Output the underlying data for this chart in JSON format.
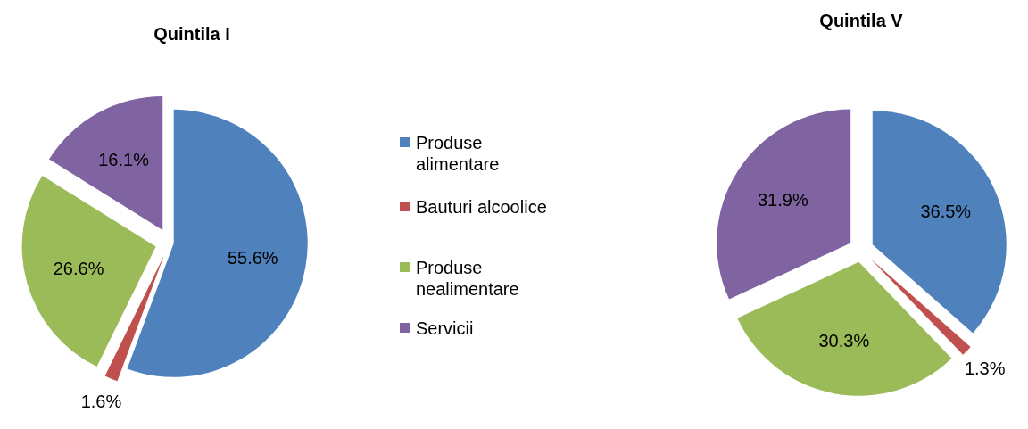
{
  "chart_data": [
    {
      "type": "pie",
      "title": "Quintila I",
      "categories": [
        "Produse alimentare",
        "Bauturi alcoolice",
        "Produse nealimentare",
        "Servicii"
      ],
      "values": [
        55.6,
        1.6,
        26.6,
        16.1
      ],
      "colors": [
        "#4f81bd",
        "#c0504d",
        "#9bbb59",
        "#8064a2"
      ],
      "value_labels": [
        "55.6%",
        "1.6%",
        "26.6%",
        "16.1%"
      ],
      "legend": "right"
    },
    {
      "type": "pie",
      "title": "Quintila V",
      "categories": [
        null,
        null,
        null,
        null
      ],
      "values": [
        36.5,
        1.3,
        30.3,
        31.9
      ],
      "colors": [
        "#4f81bd",
        "#c0504d",
        "#9bbb59",
        "#8064a2"
      ],
      "value_labels": [
        "36.5%",
        "1.3%",
        "30.3%",
        "31.9%"
      ],
      "legend": false
    }
  ]
}
